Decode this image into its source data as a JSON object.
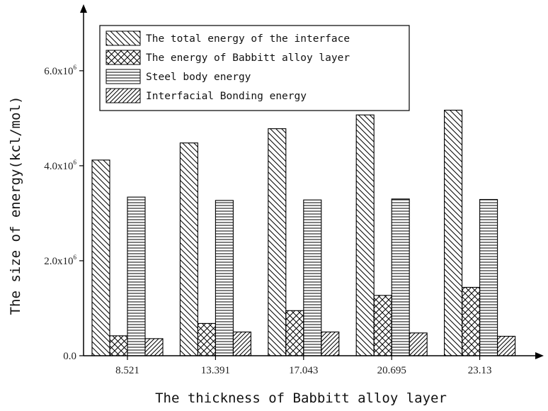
{
  "chart_data": {
    "type": "bar",
    "title": "",
    "xlabel": "The thickness of Babbitt alloy layer",
    "ylabel": "The size of energy(kcl/mol)",
    "categories": [
      "8.521",
      "13.391",
      "17.043",
      "20.695",
      "23.13"
    ],
    "ylim": [
      0,
      7400000
    ],
    "yticks": [
      {
        "value": 0,
        "label": "0.0"
      },
      {
        "value": 2000000,
        "label": "2.0x10",
        "exp": "6"
      },
      {
        "value": 4000000,
        "label": "4.0x10",
        "exp": "6"
      },
      {
        "value": 6000000,
        "label": "6.0x10",
        "exp": "6"
      }
    ],
    "legend_position": "top-left",
    "grid": false,
    "series": [
      {
        "name": "The total energy of the interface",
        "pattern": "back-diagonal",
        "values": [
          4120000,
          4480000,
          4780000,
          5070000,
          5170000
        ]
      },
      {
        "name": "The energy of Babbitt alloy layer",
        "pattern": "crosshatch",
        "values": [
          420000,
          680000,
          950000,
          1270000,
          1440000
        ]
      },
      {
        "name": "Steel body energy",
        "pattern": "horizontal",
        "values": [
          3340000,
          3270000,
          3280000,
          3300000,
          3290000
        ]
      },
      {
        "name": "Interfacial Bonding energy",
        "pattern": "forward-diagonal",
        "values": [
          360000,
          500000,
          500000,
          480000,
          410000
        ]
      }
    ]
  }
}
